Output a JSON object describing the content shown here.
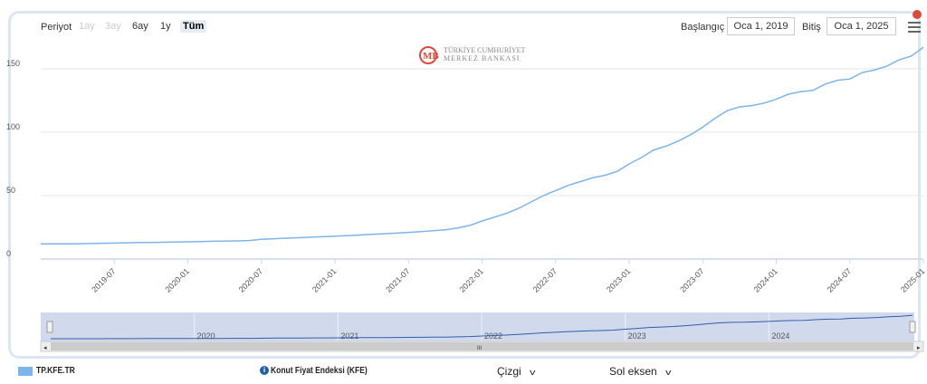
{
  "toolbar": {
    "period_label": "Periyot",
    "period_buttons": [
      {
        "label": "1ay",
        "state": "disabled"
      },
      {
        "label": "3ay",
        "state": "disabled"
      },
      {
        "label": "6ay",
        "state": "enabled"
      },
      {
        "label": "1y",
        "state": "enabled"
      },
      {
        "label": "Tüm",
        "state": "active"
      }
    ],
    "start_label": "Başlangıç",
    "start_value": "Oca 1, 2019",
    "end_label": "Bitiş",
    "end_value": "Oca 1, 2025",
    "menu_icon": "hamburger-menu-icon"
  },
  "logo": {
    "line1": "TÜRKİYE CUMHURİYET",
    "line2": "MERKEZ BANKASI",
    "icon": "tcmb-logo-icon",
    "color": "#e0483a"
  },
  "chart_data": {
    "type": "line",
    "title": "",
    "xlabel": "",
    "ylabel": "",
    "ylim": [
      0,
      170
    ],
    "y_ticks": [
      0,
      50,
      100,
      150
    ],
    "x_tick_labels": [
      "2019-07",
      "2020-01",
      "2020-07",
      "2021-01",
      "2021-07",
      "2022-01",
      "2022-07",
      "2023-01",
      "2023-07",
      "2024-01",
      "2024-07",
      "2025-01"
    ],
    "grid": true,
    "legend": "bottom-left",
    "series": [
      {
        "name": "TP.KFE.TR",
        "color": "#7cb5ec",
        "x": [
          "2019-01",
          "2019-02",
          "2019-03",
          "2019-04",
          "2019-05",
          "2019-06",
          "2019-07",
          "2019-08",
          "2019-09",
          "2019-10",
          "2019-11",
          "2019-12",
          "2020-01",
          "2020-02",
          "2020-03",
          "2020-04",
          "2020-05",
          "2020-06",
          "2020-07",
          "2020-08",
          "2020-09",
          "2020-10",
          "2020-11",
          "2020-12",
          "2021-01",
          "2021-02",
          "2021-03",
          "2021-04",
          "2021-05",
          "2021-06",
          "2021-07",
          "2021-08",
          "2021-09",
          "2021-10",
          "2021-11",
          "2021-12",
          "2022-01",
          "2022-02",
          "2022-03",
          "2022-04",
          "2022-05",
          "2022-06",
          "2022-07",
          "2022-08",
          "2022-09",
          "2022-10",
          "2022-11",
          "2022-12",
          "2023-01",
          "2023-02",
          "2023-03",
          "2023-04",
          "2023-05",
          "2023-06",
          "2023-07",
          "2023-08",
          "2023-09",
          "2023-10",
          "2023-11",
          "2023-12",
          "2024-01",
          "2024-02",
          "2024-03",
          "2024-04",
          "2024-05",
          "2024-06",
          "2024-07",
          "2024-08",
          "2024-09",
          "2024-10",
          "2024-11",
          "2024-12",
          "2025-01"
        ],
        "values": [
          12,
          12,
          12,
          12,
          12.2,
          12.4,
          12.6,
          12.8,
          13,
          13.1,
          13.2,
          13.4,
          13.6,
          13.8,
          14,
          14.1,
          14.3,
          14.6,
          15.5,
          16,
          16.4,
          16.8,
          17.2,
          17.6,
          18,
          18.4,
          18.9,
          19.4,
          19.9,
          20.4,
          21,
          21.6,
          22.3,
          23,
          24.5,
          26.5,
          30,
          33,
          36,
          40,
          45,
          50,
          54,
          58,
          61,
          64,
          66,
          69,
          75,
          80,
          86,
          89,
          93,
          98,
          104,
          111,
          117,
          120,
          121,
          123,
          126,
          130,
          132,
          133,
          138,
          141,
          142,
          147,
          149,
          152,
          157,
          160,
          167
        ]
      }
    ]
  },
  "navigator": {
    "year_labels": [
      "2020",
      "2021",
      "2022",
      "2023",
      "2024"
    ],
    "scroll_center_label": "III"
  },
  "legend_bar": {
    "series_code": "TP.KFE.TR",
    "series_name": "Konut Fiyat Endeksi (KFE)",
    "chart_type_select": "Çizgi",
    "axis_select": "Sol eksen",
    "info_icon": "info-icon",
    "swatch_color": "#7cb5ec"
  }
}
